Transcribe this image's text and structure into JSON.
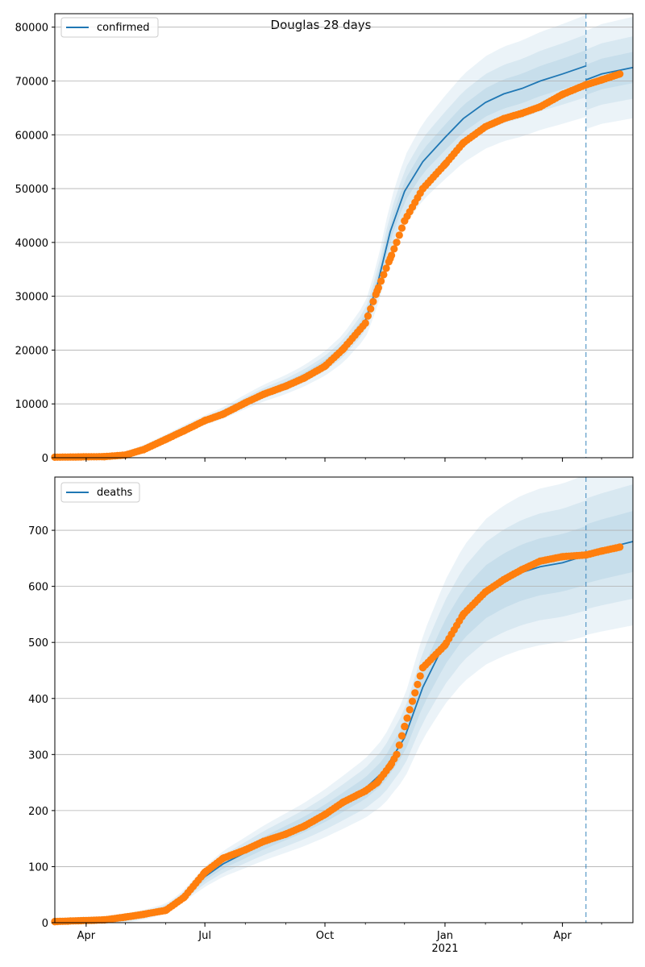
{
  "figure": {
    "title": "Douglas 28 days"
  },
  "colors": {
    "line": "#1f77b4",
    "band": "#1f77b4",
    "points": "#ff7f0e",
    "grid": "#b0b0b0"
  },
  "chart_data": [
    {
      "type": "line",
      "legend": "confirmed",
      "legend_loc": "top-left",
      "grid": "y",
      "x_range": [
        "2020-03-08",
        "2021-05-25"
      ],
      "ylim": [
        0,
        82500
      ],
      "y_ticks": [
        0,
        10000,
        20000,
        30000,
        40000,
        50000,
        60000,
        70000,
        80000
      ],
      "x_ticks": [
        {
          "date": "2020-04-01",
          "label": "Apr"
        },
        {
          "date": "2020-07-01",
          "label": "Jul"
        },
        {
          "date": "2020-10-01",
          "label": "Oct"
        },
        {
          "date": "2021-01-01",
          "label": "Jan",
          "sublabel": "2021"
        },
        {
          "date": "2021-04-01",
          "label": "Apr"
        }
      ],
      "forecast_start": "2021-04-19",
      "model": [
        [
          "2020-03-08",
          0
        ],
        [
          "2020-04-15",
          150
        ],
        [
          "2020-05-01",
          600
        ],
        [
          "2020-05-15",
          1800
        ],
        [
          "2020-06-01",
          3800
        ],
        [
          "2020-06-15",
          5400
        ],
        [
          "2020-07-01",
          7000
        ],
        [
          "2020-07-15",
          8300
        ],
        [
          "2020-08-01",
          10400
        ],
        [
          "2020-08-15",
          12000
        ],
        [
          "2020-09-01",
          13600
        ],
        [
          "2020-09-15",
          15200
        ],
        [
          "2020-10-01",
          17500
        ],
        [
          "2020-10-15",
          20300
        ],
        [
          "2020-11-01",
          25500
        ],
        [
          "2020-11-10",
          32000
        ],
        [
          "2020-11-20",
          42000
        ],
        [
          "2020-12-01",
          49500
        ],
        [
          "2020-12-15",
          55000
        ],
        [
          "2021-01-01",
          59500
        ],
        [
          "2021-01-15",
          63000
        ],
        [
          "2021-02-01",
          66000
        ],
        [
          "2021-02-15",
          67600
        ],
        [
          "2021-03-01",
          68600
        ],
        [
          "2021-03-15",
          70000
        ],
        [
          "2021-04-01",
          71300
        ],
        [
          "2021-04-19",
          72800
        ]
      ],
      "model_after_forecast": [
        [
          "2021-04-19",
          70200
        ],
        [
          "2021-05-01",
          71300
        ],
        [
          "2021-05-25",
          72500
        ]
      ],
      "band_half_widths_pct": [
        4,
        8,
        13
      ],
      "observed": [
        [
          "2020-03-08",
          100
        ],
        [
          "2020-04-15",
          200
        ],
        [
          "2020-05-01",
          500
        ],
        [
          "2020-05-15",
          1500
        ],
        [
          "2020-06-01",
          3400
        ],
        [
          "2020-06-15",
          5000
        ],
        [
          "2020-07-01",
          6900
        ],
        [
          "2020-07-15",
          8100
        ],
        [
          "2020-08-01",
          10200
        ],
        [
          "2020-08-15",
          11800
        ],
        [
          "2020-09-01",
          13300
        ],
        [
          "2020-09-15",
          14800
        ],
        [
          "2020-10-01",
          17000
        ],
        [
          "2020-10-15",
          20200
        ],
        [
          "2020-11-01",
          25000
        ],
        [
          "2020-11-10",
          31000
        ],
        [
          "2020-11-20",
          37000
        ],
        [
          "2020-11-25",
          40000
        ],
        [
          "2020-12-01",
          44000
        ],
        [
          "2020-12-15",
          50000
        ],
        [
          "2021-01-01",
          54500
        ],
        [
          "2021-01-15",
          58500
        ],
        [
          "2021-02-01",
          61500
        ],
        [
          "2021-02-15",
          63000
        ],
        [
          "2021-03-01",
          64000
        ],
        [
          "2021-03-15",
          65200
        ],
        [
          "2021-04-01",
          67500
        ],
        [
          "2021-04-19",
          69300
        ],
        [
          "2021-05-01",
          70200
        ],
        [
          "2021-05-15",
          71300
        ]
      ]
    },
    {
      "type": "line",
      "legend": "deaths",
      "legend_loc": "top-left",
      "grid": "y",
      "x_range": [
        "2020-03-08",
        "2021-05-25"
      ],
      "ylim": [
        0,
        795
      ],
      "y_ticks": [
        0,
        100,
        200,
        300,
        400,
        500,
        600,
        700
      ],
      "x_ticks": [
        {
          "date": "2020-04-01",
          "label": "Apr"
        },
        {
          "date": "2020-07-01",
          "label": "Jul"
        },
        {
          "date": "2020-10-01",
          "label": "Oct"
        },
        {
          "date": "2021-01-01",
          "label": "Jan",
          "sublabel": "2021"
        },
        {
          "date": "2021-04-01",
          "label": "Apr"
        }
      ],
      "forecast_start": "2021-04-19",
      "model": [
        [
          "2020-03-08",
          0
        ],
        [
          "2020-04-15",
          3
        ],
        [
          "2020-05-01",
          8
        ],
        [
          "2020-05-15",
          14
        ],
        [
          "2020-06-01",
          25
        ],
        [
          "2020-06-15",
          48
        ],
        [
          "2020-07-01",
          82
        ],
        [
          "2020-07-15",
          105
        ],
        [
          "2020-08-01",
          125
        ],
        [
          "2020-08-15",
          142
        ],
        [
          "2020-09-01",
          160
        ],
        [
          "2020-09-15",
          175
        ],
        [
          "2020-10-01",
          195
        ],
        [
          "2020-10-15",
          215
        ],
        [
          "2020-11-01",
          240
        ],
        [
          "2020-11-15",
          270
        ],
        [
          "2020-12-01",
          330
        ],
        [
          "2020-12-15",
          420
        ],
        [
          "2021-01-01",
          500
        ],
        [
          "2021-01-15",
          550
        ],
        [
          "2021-02-01",
          590
        ],
        [
          "2021-02-15",
          610
        ],
        [
          "2021-03-01",
          625
        ],
        [
          "2021-03-15",
          635
        ],
        [
          "2021-04-01",
          642
        ],
        [
          "2021-04-19",
          655
        ]
      ],
      "model_after_forecast": [
        [
          "2021-04-19",
          658
        ],
        [
          "2021-05-01",
          666
        ],
        [
          "2021-05-25",
          680
        ]
      ],
      "band_half_widths_pct": [
        8,
        15,
        22
      ],
      "observed": [
        [
          "2020-03-08",
          2
        ],
        [
          "2020-04-15",
          5
        ],
        [
          "2020-05-01",
          10
        ],
        [
          "2020-05-15",
          15
        ],
        [
          "2020-06-01",
          22
        ],
        [
          "2020-06-15",
          45
        ],
        [
          "2020-07-01",
          90
        ],
        [
          "2020-07-15",
          115
        ],
        [
          "2020-08-01",
          130
        ],
        [
          "2020-08-15",
          145
        ],
        [
          "2020-09-01",
          158
        ],
        [
          "2020-09-15",
          172
        ],
        [
          "2020-10-01",
          193
        ],
        [
          "2020-10-15",
          215
        ],
        [
          "2020-11-01",
          235
        ],
        [
          "2020-11-10",
          250
        ],
        [
          "2020-11-20",
          280
        ],
        [
          "2020-11-25",
          300
        ],
        [
          "2020-12-01",
          350
        ],
        [
          "2020-12-15",
          455
        ],
        [
          "2021-01-01",
          495
        ],
        [
          "2021-01-15",
          550
        ],
        [
          "2021-02-01",
          590
        ],
        [
          "2021-02-15",
          612
        ],
        [
          "2021-03-01",
          630
        ],
        [
          "2021-03-15",
          645
        ],
        [
          "2021-04-01",
          653
        ],
        [
          "2021-04-19",
          656
        ],
        [
          "2021-05-01",
          663
        ],
        [
          "2021-05-15",
          670
        ]
      ]
    }
  ]
}
